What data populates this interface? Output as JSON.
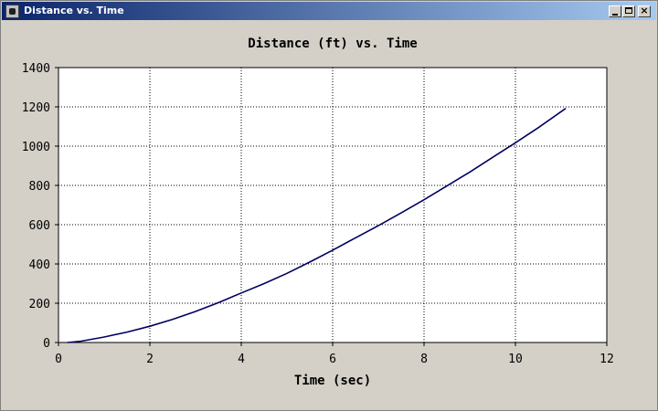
{
  "window": {
    "title": "Distance vs. Time",
    "icon": "app-icon",
    "controls": {
      "minimize": "minimize-icon",
      "maximize": "maximize-icon",
      "close": "close-icon",
      "close_glyph": "×"
    }
  },
  "chart_data": {
    "type": "line",
    "title": "Distance (ft) vs. Time",
    "xlabel": "Time (sec)",
    "ylabel": "",
    "xlim": [
      0,
      12
    ],
    "ylim": [
      0,
      1400
    ],
    "xticks": [
      0,
      2,
      4,
      6,
      8,
      10,
      12
    ],
    "yticks": [
      0,
      200,
      400,
      600,
      800,
      1000,
      1200,
      1400
    ],
    "grid": true,
    "legend": "none",
    "colors": {
      "line": "#000060",
      "grid": "#000000",
      "plot_bg": "#ffffff"
    },
    "series": [
      {
        "x": [
          0.2,
          0.5,
          1.0,
          1.5,
          2.0,
          2.5,
          3.0,
          3.5,
          4.0,
          4.5,
          5.0,
          5.5,
          6.0,
          6.5,
          7.0,
          7.5,
          8.0,
          8.5,
          9.0,
          9.5,
          10.0,
          10.5,
          11.1
        ],
        "y": [
          0,
          7,
          28,
          53,
          83,
          118,
          158,
          203,
          252,
          300,
          352,
          410,
          470,
          533,
          595,
          660,
          727,
          797,
          868,
          943,
          1017,
          1094,
          1192
        ]
      }
    ]
  }
}
